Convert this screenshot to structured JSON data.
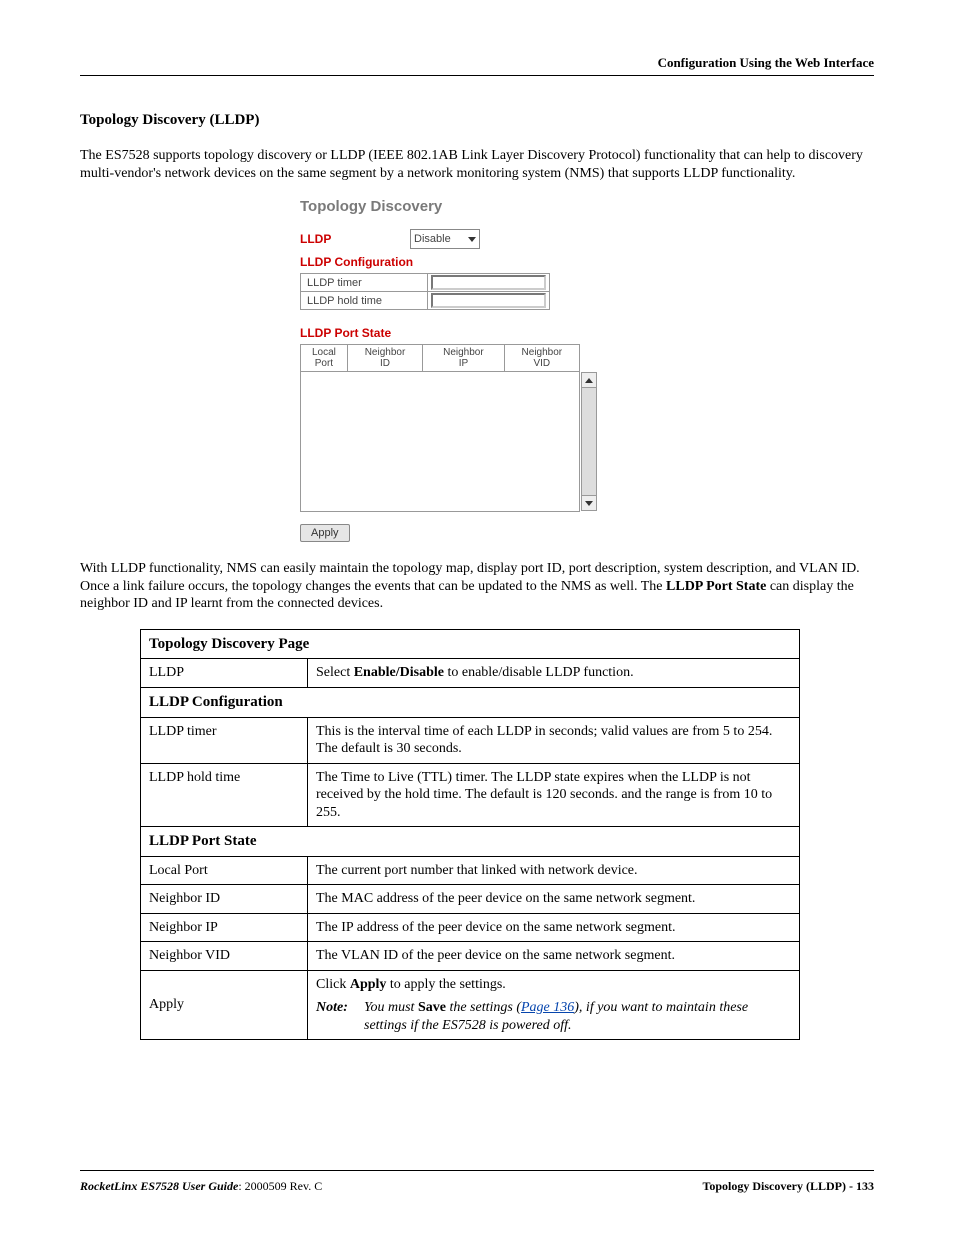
{
  "header": {
    "right": "Configuration Using the Web Interface"
  },
  "section": {
    "title": "Topology Discovery (LLDP)"
  },
  "intro": "The ES7528 supports topology discovery or LLDP (IEEE 802.1AB Link Layer Discovery Protocol) functionality that can help to discovery multi-vendor's network devices on the same segment by a network monitoring system (NMS) that supports LLDP functionality.",
  "ui": {
    "title": "Topology Discovery",
    "lldp_label": "LLDP",
    "lldp_select_value": "Disable",
    "config_head": "LLDP Configuration",
    "config_rows": [
      {
        "label": "LLDP timer",
        "value": ""
      },
      {
        "label": "LLDP hold time",
        "value": ""
      }
    ],
    "portstate_head": "LLDP Port State",
    "portstate_cols": [
      "Local\nPort",
      "Neighbor\nID",
      "Neighbor\nIP",
      "Neighbor\nVID"
    ],
    "apply_label": "Apply"
  },
  "para2_parts": {
    "p1": "With LLDP functionality, NMS can easily maintain the topology map, display port ID, port description, system description, and VLAN ID. Once a link failure occurs, the topology changes the events that can be updated to the NMS as well. The ",
    "b1": "LLDP Port State",
    "p2": " can display the neighbor ID and IP learnt from the connected devices."
  },
  "table": {
    "title": "Topology Discovery Page",
    "rows": {
      "lldp": {
        "label": "LLDP",
        "pre": "Select ",
        "bold": "Enable/Disable",
        "post": " to enable/disable LLDP function."
      },
      "conf_head": "LLDP Configuration",
      "timer": {
        "label": "LLDP timer",
        "text": "This is the interval time of each LLDP in seconds; valid values are from 5 to 254. The default is 30 seconds."
      },
      "hold": {
        "label": "LLDP hold time",
        "text": "The Time to Live (TTL) timer. The LLDP state expires when the LLDP is not received by the hold time. The default is 120 seconds. and the range is from 10 to 255."
      },
      "ps_head": "LLDP Port State",
      "local": {
        "label": "Local Port",
        "text": "The current port number that linked with network device."
      },
      "nid": {
        "label": "Neighbor ID",
        "text": "The MAC address of the peer device on the same network segment."
      },
      "nip": {
        "label": "Neighbor IP",
        "text": "The IP address of the peer device on the same network segment."
      },
      "nvid": {
        "label": "Neighbor VID",
        "text": "The VLAN ID of the peer device on the same network segment."
      },
      "apply": {
        "label": "Apply",
        "click_pre": "Click ",
        "click_bold": "Apply",
        "click_post": " to apply the settings.",
        "note_label": "Note:",
        "note_pre": " You must ",
        "note_bold": "Save",
        "note_mid": " the settings (",
        "note_link": "Page 136",
        "note_post": "), if you want to maintain these settings if the ES7528 is powered off."
      }
    }
  },
  "footer": {
    "doc": "RocketLinx ES7528  User Guide",
    "rev": ": 2000509 Rev. C",
    "right": "Topology Discovery (LLDP) - 133"
  },
  "colors": {
    "red": "#c00",
    "grey": "#7a7a7a",
    "link": "#0645ad"
  }
}
